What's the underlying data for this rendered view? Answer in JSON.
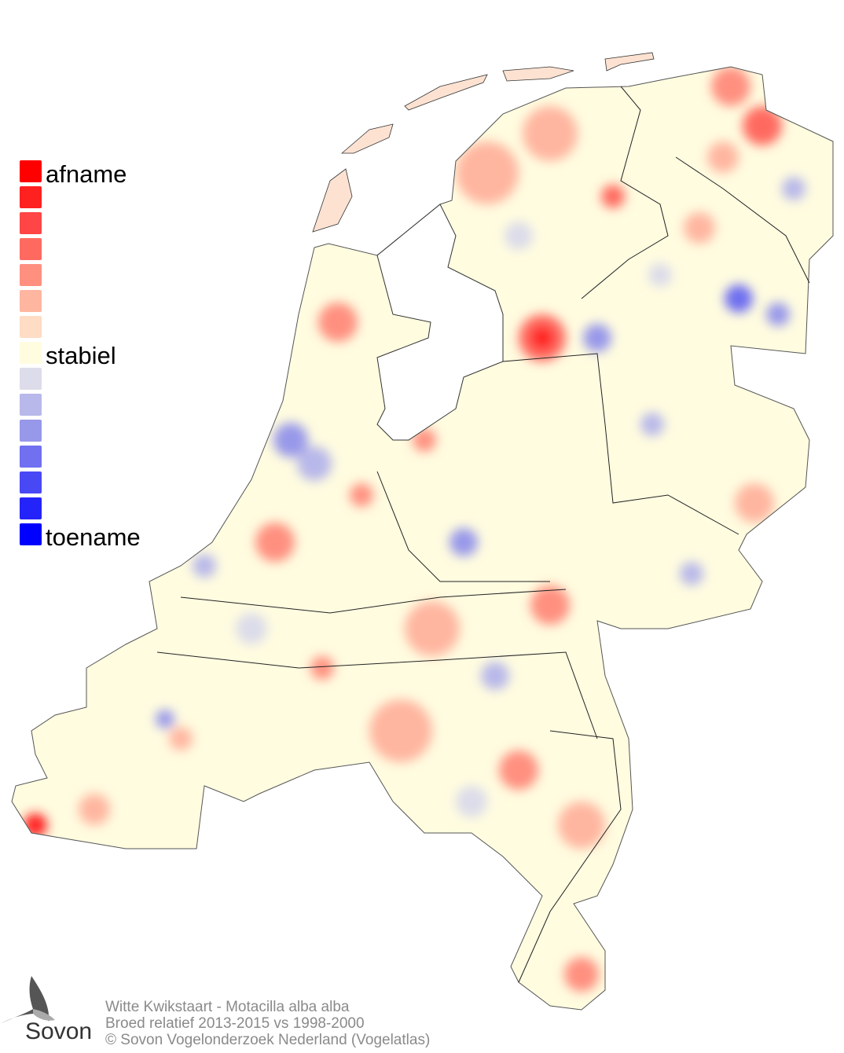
{
  "legend": {
    "top_label": "afname",
    "middle_label": "stabiel",
    "bottom_label": "toename",
    "colors": [
      "#ff0000",
      "#ff2020",
      "#ff4545",
      "#ff6a60",
      "#ff9080",
      "#ffb6a0",
      "#ffdcc4",
      "#fffce0",
      "#dcdcea",
      "#b8b8ea",
      "#9898ea",
      "#7070f0",
      "#4848f5",
      "#2424fa",
      "#0000ff"
    ]
  },
  "footer": {
    "line1": "Witte Kwikstaart - Motacilla alba alba",
    "line2": "Broed relatief 2013-2015 vs 1998-2000",
    "line3": "© Sovon Vogelonderzoek Nederland (Vogelatlas)"
  },
  "logo": {
    "text": "Sovon",
    "icon": "swallow-icon"
  },
  "map": {
    "region": "Netherlands",
    "base_color": "#fffce0",
    "increase_color": "#7070f0",
    "decrease_color": "#ff4545"
  }
}
